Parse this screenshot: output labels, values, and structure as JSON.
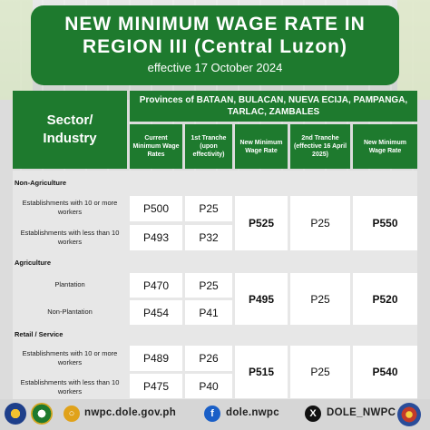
{
  "header": {
    "title_line1": "NEW MINIMUM WAGE RATE IN",
    "title_line2": "REGION III (Central Luzon)",
    "subtitle": "effective 17 October 2024"
  },
  "table": {
    "sector_header_line1": "Sector/",
    "sector_header_line2": "Industry",
    "provinces_line1": "Provinces of BATAAN, BULACAN, NUEVA ECIJA, PAMPANGA,",
    "provinces_line2": "TARLAC, ZAMBALES",
    "columns": [
      "Current Minimum Wage Rates",
      "1st Tranche (upon effectivity)",
      "New Minimum Wage Rate",
      "2nd Tranche (effective 16 April 2025)",
      "New Minimum Wage Rate"
    ],
    "groups": [
      {
        "name": "Non-Agriculture",
        "rows": [
          {
            "label": "Establishments with 10 or more workers",
            "current": "P500",
            "tranche1": "P25"
          },
          {
            "label": "Establishments with less than 10 workers",
            "current": "P493",
            "tranche1": "P32"
          }
        ],
        "new_rate_1": "P525",
        "tranche2": "P25",
        "new_rate_2": "P550"
      },
      {
        "name": "Agriculture",
        "rows": [
          {
            "label": "Plantation",
            "current": "P470",
            "tranche1": "P25"
          },
          {
            "label": "Non-Plantation",
            "current": "P454",
            "tranche1": "P41"
          }
        ],
        "new_rate_1": "P495",
        "tranche2": "P25",
        "new_rate_2": "P520"
      },
      {
        "name": "Retail / Service",
        "rows": [
          {
            "label": "Establishments with 10 or more workers",
            "current": "P489",
            "tranche1": "P26"
          },
          {
            "label": "Establishments with less than 10 workers",
            "current": "P475",
            "tranche1": "P40"
          }
        ],
        "new_rate_1": "P515",
        "tranche2": "P25",
        "new_rate_2": "P540"
      }
    ]
  },
  "footer": {
    "website": "nwpc.dole.gov.ph",
    "facebook": "dole.nwpc",
    "x_handle": "DOLE_NWPC",
    "website_icon": "globe-icon",
    "facebook_icon": "facebook-icon",
    "x_icon": "x-icon"
  },
  "colors": {
    "brand_green": "#1e7a2e"
  }
}
